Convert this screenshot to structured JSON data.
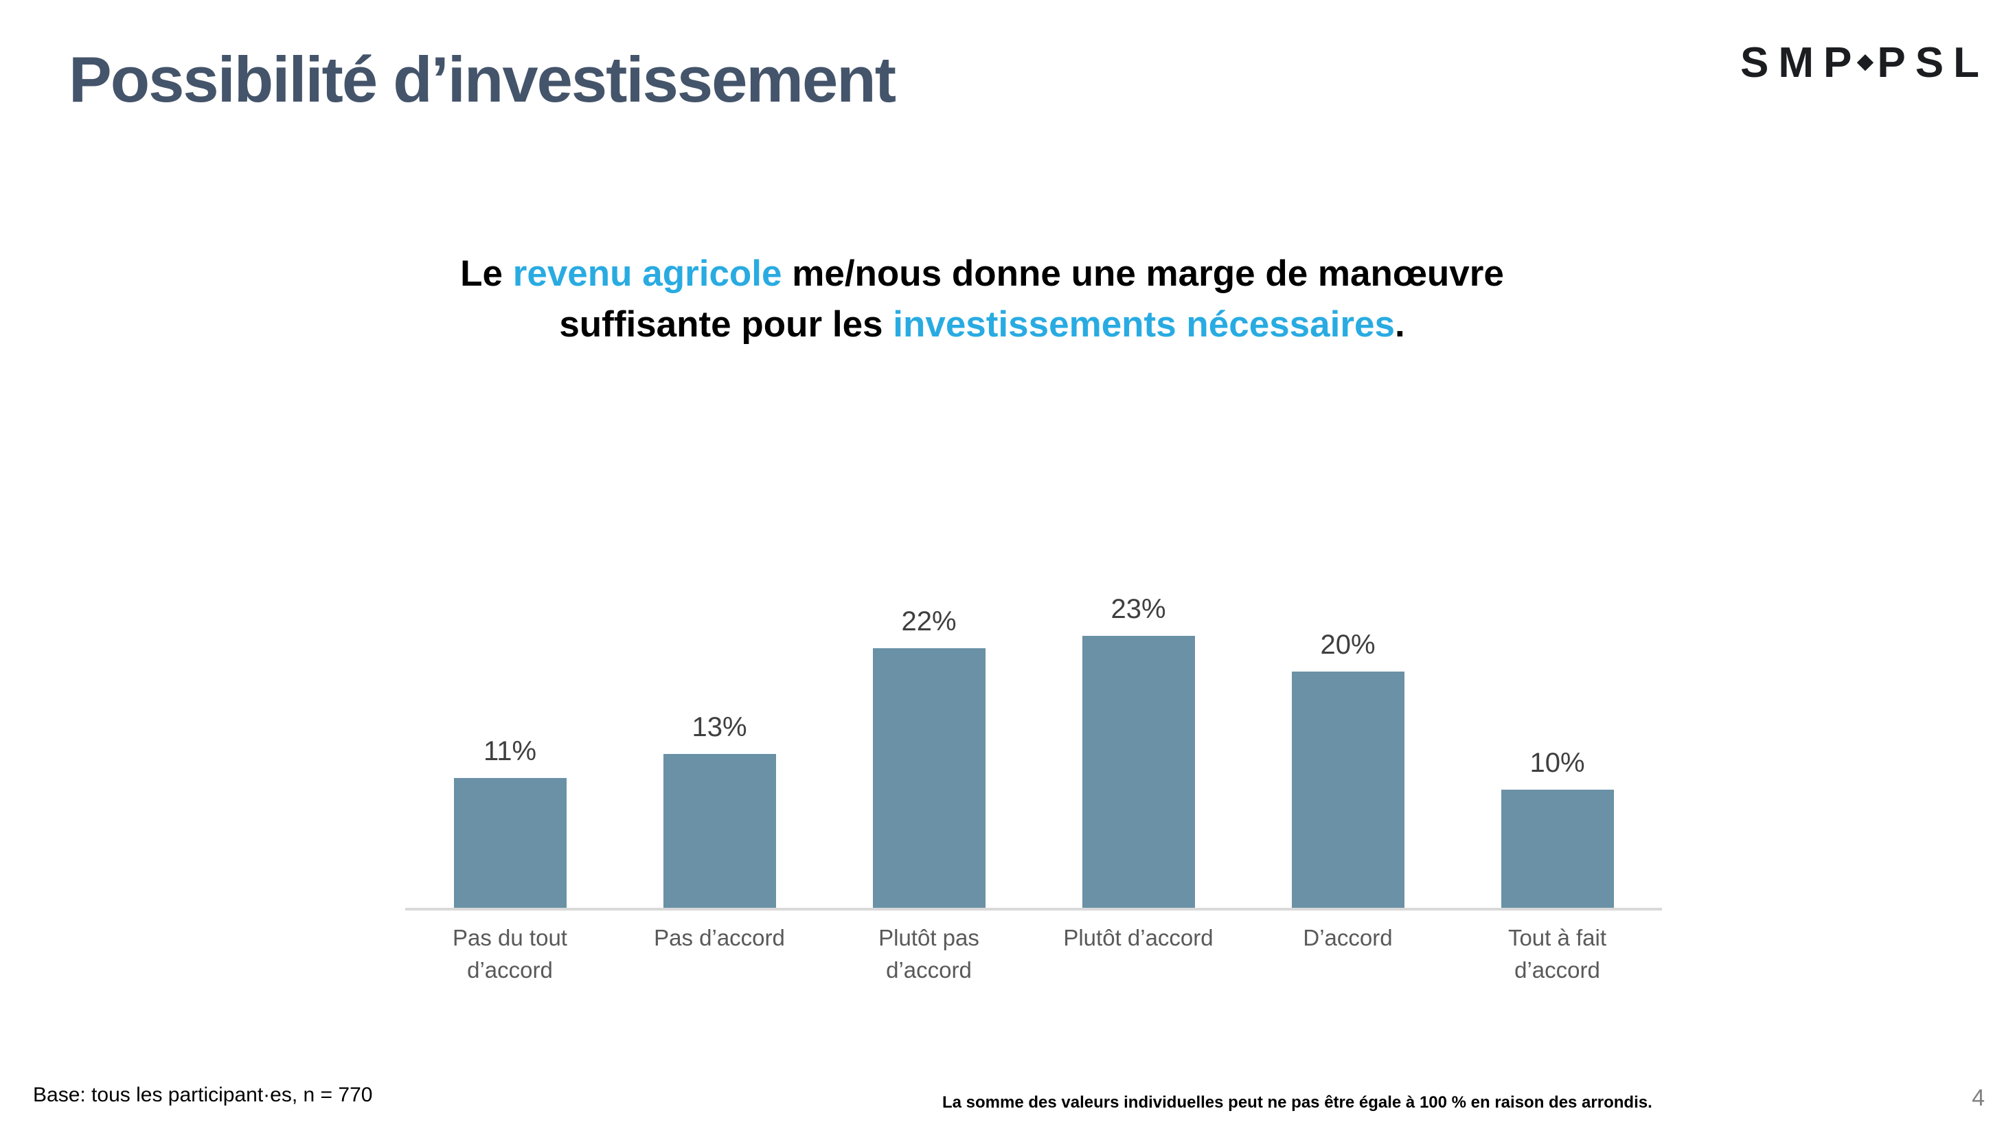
{
  "slide": {
    "title": "Possibilité d’investissement",
    "page_number": "4",
    "footer_left": "Base: tous les participant·es, n = 770",
    "footer_note": "La somme des valeurs individuelles peut ne pas être égale à 100 % en raison des arrondis.",
    "logo": {
      "part1": "SMP",
      "separator": "◆",
      "part2": "PSL"
    }
  },
  "question": {
    "accent_color": "#29ABE2",
    "lines": [
      [
        {
          "text": "Le ",
          "accent": false
        },
        {
          "text": "revenu agricole",
          "accent": true
        },
        {
          "text": " me/nous donne une marge de manœuvre",
          "accent": false
        }
      ],
      [
        {
          "text": "suffisante pour les ",
          "accent": false
        },
        {
          "text": "investissements nécessaires",
          "accent": true
        },
        {
          "text": ".",
          "accent": false
        }
      ]
    ]
  },
  "chart_data": {
    "type": "bar",
    "categories": [
      "Pas du tout\nd’accord",
      "Pas d’accord",
      "Plutôt pas\nd’accord",
      "Plutôt d’accord",
      "D’accord",
      "Tout à fait\nd’accord"
    ],
    "values": [
      11,
      13,
      22,
      23,
      20,
      10
    ],
    "value_labels": [
      "11%",
      "13%",
      "22%",
      "23%",
      "20%",
      "10%"
    ],
    "title": "",
    "xlabel": "",
    "ylabel": "",
    "ylim": [
      0,
      25
    ],
    "grid": false,
    "legend": "none",
    "bar_color": "#6A91A6",
    "value_label_color": "#3F3F3F",
    "category_label_color": "#595959",
    "axis_line_color": "#D9D9D9"
  }
}
